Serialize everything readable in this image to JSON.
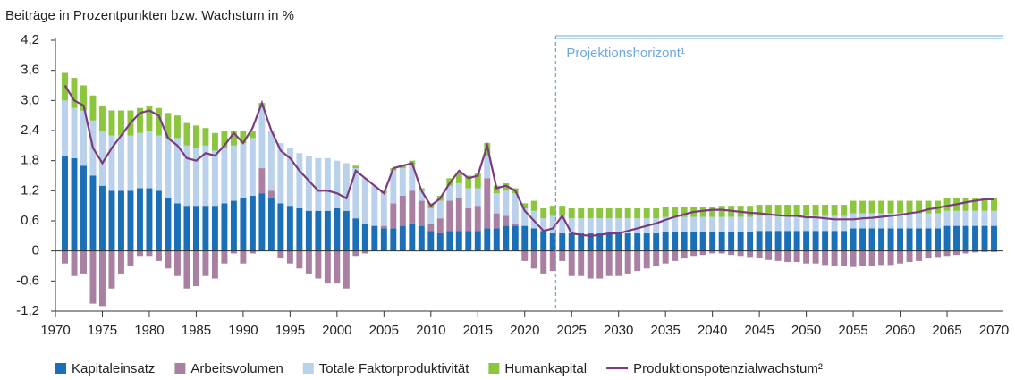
{
  "chart_data": {
    "type": "bar",
    "title": "Beiträge in Prozentpunkten bzw. Wachstum in %",
    "x": [
      1971,
      1972,
      1973,
      1974,
      1975,
      1976,
      1977,
      1978,
      1979,
      1980,
      1981,
      1982,
      1983,
      1984,
      1985,
      1986,
      1987,
      1988,
      1989,
      1990,
      1991,
      1992,
      1993,
      1994,
      1995,
      1996,
      1997,
      1998,
      1999,
      2000,
      2001,
      2002,
      2003,
      2004,
      2005,
      2006,
      2007,
      2008,
      2009,
      2010,
      2011,
      2012,
      2013,
      2014,
      2015,
      2016,
      2017,
      2018,
      2019,
      2020,
      2021,
      2022,
      2023,
      2024,
      2025,
      2026,
      2027,
      2028,
      2029,
      2030,
      2031,
      2032,
      2033,
      2034,
      2035,
      2036,
      2037,
      2038,
      2039,
      2040,
      2041,
      2042,
      2043,
      2044,
      2045,
      2046,
      2047,
      2048,
      2049,
      2050,
      2051,
      2052,
      2053,
      2054,
      2055,
      2056,
      2057,
      2058,
      2059,
      2060,
      2061,
      2062,
      2063,
      2064,
      2065,
      2066,
      2067,
      2068,
      2069,
      2070
    ],
    "xlim": [
      1970,
      2071
    ],
    "xticks": [
      1970,
      1975,
      1980,
      1985,
      1990,
      1995,
      2000,
      2005,
      2010,
      2015,
      2020,
      2025,
      2030,
      2035,
      2040,
      2045,
      2050,
      2055,
      2060,
      2065,
      2070
    ],
    "ylim": [
      -1.2,
      4.2
    ],
    "yticks": [
      {
        "value": -1.2,
        "label": "-1,2"
      },
      {
        "value": -0.6,
        "label": "-0,6"
      },
      0,
      {
        "value": 0.6,
        "label": "0,6"
      },
      {
        "value": 1.2,
        "label": "1,2"
      },
      {
        "value": 1.8,
        "label": "1,8"
      },
      {
        "value": 2.4,
        "label": "2,4"
      },
      {
        "value": 3.0,
        "label": "3,0"
      },
      {
        "value": 3.6,
        "label": "3,6"
      },
      {
        "value": 4.2,
        "label": "4,2"
      }
    ],
    "grid": false,
    "projection": {
      "label": "Projektionshorizont¹",
      "x": 2023.3,
      "color": "#6fa8dc"
    },
    "series": [
      {
        "name": "Kapitaleinsatz",
        "color": "#1b6fb6",
        "values": [
          1.9,
          1.85,
          1.7,
          1.5,
          1.3,
          1.2,
          1.2,
          1.2,
          1.25,
          1.25,
          1.2,
          1.05,
          0.95,
          0.9,
          0.9,
          0.9,
          0.9,
          0.95,
          1.0,
          1.05,
          1.1,
          1.15,
          1.05,
          0.95,
          0.9,
          0.85,
          0.8,
          0.8,
          0.8,
          0.85,
          0.8,
          0.65,
          0.55,
          0.5,
          0.45,
          0.45,
          0.5,
          0.55,
          0.5,
          0.4,
          0.35,
          0.4,
          0.4,
          0.4,
          0.4,
          0.45,
          0.45,
          0.5,
          0.5,
          0.5,
          0.45,
          0.4,
          0.35,
          0.35,
          0.35,
          0.35,
          0.35,
          0.35,
          0.35,
          0.35,
          0.35,
          0.35,
          0.35,
          0.35,
          0.38,
          0.38,
          0.38,
          0.38,
          0.38,
          0.38,
          0.38,
          0.38,
          0.38,
          0.38,
          0.4,
          0.4,
          0.4,
          0.4,
          0.4,
          0.4,
          0.4,
          0.4,
          0.4,
          0.4,
          0.45,
          0.45,
          0.45,
          0.45,
          0.45,
          0.45,
          0.45,
          0.45,
          0.45,
          0.45,
          0.5,
          0.5,
          0.5,
          0.5,
          0.5,
          0.5
        ]
      },
      {
        "name": "Arbeitsvolumen",
        "color": "#a97fa2",
        "values": [
          -0.25,
          -0.5,
          -0.45,
          -1.05,
          -1.1,
          -0.75,
          -0.45,
          -0.3,
          -0.1,
          -0.1,
          -0.2,
          -0.35,
          -0.5,
          -0.75,
          -0.7,
          -0.5,
          -0.55,
          -0.25,
          -0.05,
          -0.25,
          -0.05,
          0.5,
          0.15,
          -0.15,
          -0.25,
          -0.35,
          -0.45,
          -0.55,
          -0.65,
          -0.65,
          -0.75,
          -0.1,
          -0.05,
          0,
          0.05,
          0.5,
          0.6,
          0.65,
          0.5,
          0.15,
          0.3,
          0.6,
          0.65,
          0.45,
          0.5,
          1.0,
          0.3,
          0.2,
          0.05,
          -0.2,
          -0.35,
          -0.45,
          -0.4,
          -0.2,
          -0.5,
          -0.5,
          -0.55,
          -0.55,
          -0.5,
          -0.5,
          -0.45,
          -0.4,
          -0.35,
          -0.3,
          -0.25,
          -0.2,
          -0.15,
          -0.1,
          -0.08,
          -0.05,
          -0.05,
          -0.08,
          -0.1,
          -0.12,
          -0.15,
          -0.18,
          -0.2,
          -0.22,
          -0.22,
          -0.25,
          -0.25,
          -0.28,
          -0.3,
          -0.3,
          -0.32,
          -0.3,
          -0.3,
          -0.28,
          -0.28,
          -0.25,
          -0.22,
          -0.2,
          -0.15,
          -0.12,
          -0.1,
          -0.08,
          -0.05,
          -0.03,
          -0.02,
          -0.02
        ]
      },
      {
        "name": "Totale Faktorproduktivität",
        "color": "#b9d1eb",
        "values": [
          1.1,
          1.0,
          1.1,
          1.1,
          1.1,
          1.1,
          1.1,
          1.1,
          1.1,
          1.15,
          1.1,
          1.2,
          1.3,
          1.2,
          1.15,
          1.2,
          1.1,
          1.1,
          1.1,
          1.1,
          1.15,
          1.2,
          1.2,
          1.2,
          1.15,
          1.1,
          1.1,
          1.05,
          1.05,
          0.95,
          0.95,
          1.0,
          0.9,
          0.8,
          0.65,
          0.65,
          0.55,
          0.5,
          0.2,
          0.3,
          0.35,
          0.3,
          0.3,
          0.4,
          0.35,
          0.45,
          0.4,
          0.5,
          0.6,
          0.35,
          0.35,
          0.25,
          0.35,
          0.35,
          0.3,
          0.3,
          0.3,
          0.3,
          0.3,
          0.3,
          0.3,
          0.3,
          0.3,
          0.3,
          0.3,
          0.3,
          0.3,
          0.3,
          0.3,
          0.3,
          0.3,
          0.3,
          0.3,
          0.3,
          0.3,
          0.3,
          0.3,
          0.3,
          0.3,
          0.3,
          0.3,
          0.3,
          0.3,
          0.3,
          0.3,
          0.3,
          0.3,
          0.3,
          0.3,
          0.3,
          0.3,
          0.3,
          0.3,
          0.3,
          0.3,
          0.3,
          0.3,
          0.3,
          0.3,
          0.3
        ]
      },
      {
        "name": "Humankapital",
        "color": "#8cc63f",
        "values": [
          0.55,
          0.6,
          0.5,
          0.5,
          0.5,
          0.5,
          0.5,
          0.5,
          0.5,
          0.5,
          0.55,
          0.5,
          0.45,
          0.45,
          0.45,
          0.35,
          0.35,
          0.35,
          0.3,
          0.25,
          0.15,
          0.1,
          0,
          0,
          0,
          0,
          0,
          0,
          0,
          0,
          0,
          0.05,
          0,
          0,
          0.05,
          0.05,
          0.05,
          0.1,
          0.05,
          0.1,
          0.1,
          0.15,
          0.2,
          0.25,
          0.3,
          0.25,
          0.15,
          0.15,
          0.1,
          0.1,
          0.2,
          0.2,
          0.2,
          0.2,
          0.2,
          0.2,
          0.2,
          0.2,
          0.2,
          0.2,
          0.2,
          0.2,
          0.2,
          0.2,
          0.2,
          0.2,
          0.2,
          0.2,
          0.2,
          0.2,
          0.22,
          0.22,
          0.22,
          0.22,
          0.22,
          0.22,
          0.22,
          0.22,
          0.22,
          0.22,
          0.22,
          0.22,
          0.22,
          0.22,
          0.25,
          0.25,
          0.25,
          0.25,
          0.25,
          0.25,
          0.25,
          0.25,
          0.25,
          0.25,
          0.25,
          0.25,
          0.25,
          0.25,
          0.25,
          0.25
        ]
      },
      {
        "name": "Produktionspotenzialwachstum²",
        "color": "#7b3b7e",
        "type": "line",
        "values": [
          3.3,
          3.0,
          2.9,
          2.05,
          1.75,
          2.05,
          2.3,
          2.55,
          2.75,
          2.8,
          2.7,
          2.25,
          2.1,
          1.85,
          1.8,
          1.95,
          1.9,
          2.1,
          2.35,
          2.15,
          2.45,
          2.95,
          2.4,
          2.0,
          1.85,
          1.6,
          1.4,
          1.2,
          1.2,
          1.15,
          1.05,
          1.6,
          1.45,
          1.3,
          1.15,
          1.65,
          1.7,
          1.75,
          1.2,
          0.9,
          1.05,
          1.35,
          1.6,
          1.45,
          1.5,
          2.1,
          1.25,
          1.3,
          1.2,
          0.8,
          0.6,
          0.4,
          0.45,
          0.7,
          0.35,
          0.32,
          0.3,
          0.32,
          0.35,
          0.35,
          0.4,
          0.45,
          0.5,
          0.55,
          0.62,
          0.68,
          0.73,
          0.78,
          0.8,
          0.82,
          0.82,
          0.8,
          0.78,
          0.76,
          0.75,
          0.73,
          0.71,
          0.7,
          0.7,
          0.67,
          0.67,
          0.65,
          0.63,
          0.63,
          0.63,
          0.65,
          0.66,
          0.68,
          0.7,
          0.72,
          0.75,
          0.78,
          0.83,
          0.86,
          0.9,
          0.93,
          0.97,
          1.0,
          1.03,
          1.03
        ]
      }
    ]
  }
}
